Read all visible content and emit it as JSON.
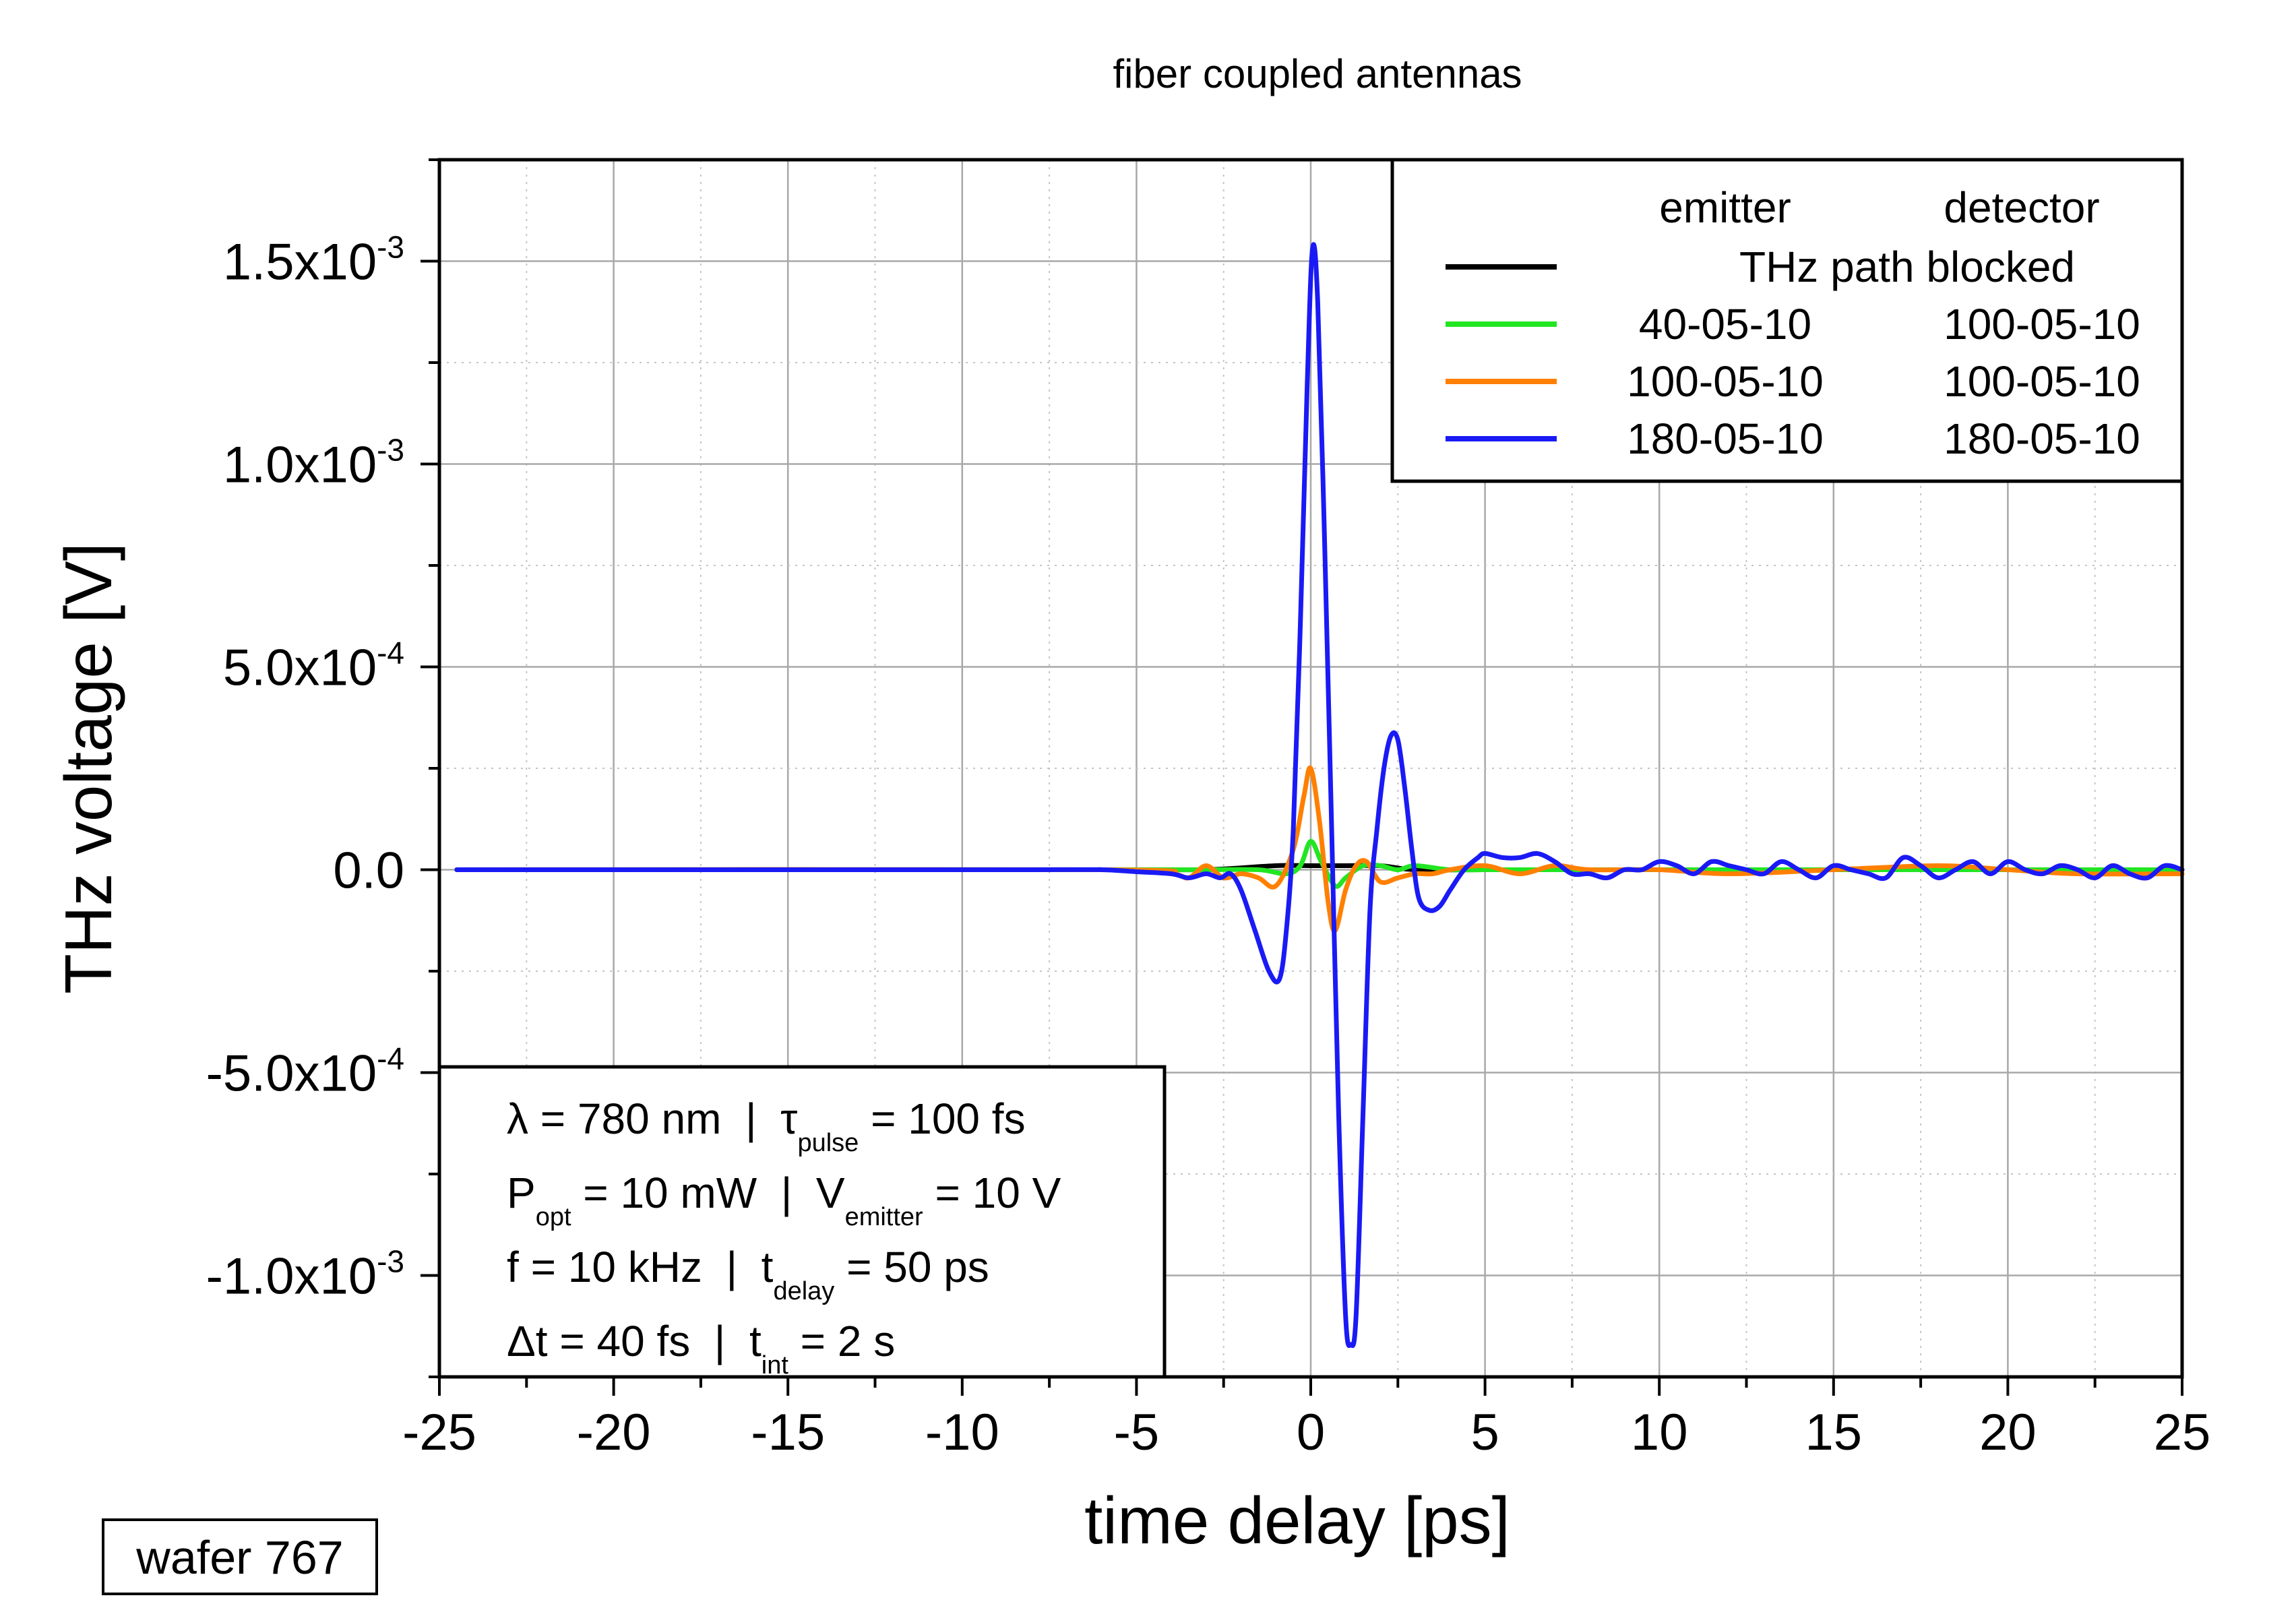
{
  "chart_data": {
    "type": "line",
    "title": "fiber coupled antennas",
    "xlabel": "time delay [ps]",
    "ylabel": "THz voltage [V]",
    "xlim": [
      -25,
      25
    ],
    "ylim": [
      -0.00125,
      0.00175
    ],
    "x_ticks": [
      -25,
      -20,
      -15,
      -10,
      -5,
      0,
      5,
      10,
      15,
      20,
      25
    ],
    "x_tick_labels": [
      "-25",
      "-20",
      "-15",
      "-10",
      "-5",
      "0",
      "5",
      "10",
      "15",
      "20",
      "25"
    ],
    "y_ticks": [
      {
        "value": 0.0015,
        "mantissa": "1.5x10",
        "exp": "-3"
      },
      {
        "value": 0.001,
        "mantissa": "1.0x10",
        "exp": "-3"
      },
      {
        "value": 0.0005,
        "mantissa": "5.0x10",
        "exp": "-4"
      },
      {
        "value": 0,
        "mantissa": "0.0",
        "exp": ""
      },
      {
        "value": -0.0005,
        "mantissa": "-5.0x10",
        "exp": "-4"
      },
      {
        "value": -0.001,
        "mantissa": "-1.0x10",
        "exp": "-3"
      }
    ],
    "grid": true,
    "legend": {
      "placement": "top-right",
      "header_emitter": "emitter",
      "header_detector": "detector",
      "entries": [
        {
          "color": "#000000",
          "label": "THz path blocked",
          "emitter": "",
          "detector": ""
        },
        {
          "color": "#22e622",
          "label": "",
          "emitter": "40-05-10",
          "detector": "100-05-10"
        },
        {
          "color": "#ff8000",
          "label": "",
          "emitter": "100-05-10",
          "detector": "100-05-10"
        },
        {
          "color": "#1a1af5",
          "label": "",
          "emitter": "180-05-10",
          "detector": "180-05-10"
        }
      ]
    },
    "series": [
      {
        "color": "#000000",
        "x": [
          -24.5,
          -5,
          -3,
          -1,
          0,
          1,
          2,
          3,
          5,
          10,
          15,
          20,
          25
        ],
        "y": [
          0,
          0,
          0,
          1e-05,
          1e-05,
          1e-05,
          1e-05,
          0,
          0,
          0,
          0,
          0,
          0
        ]
      },
      {
        "color": "#22e622",
        "x": [
          -24.5,
          -5,
          -3,
          -1.5,
          -0.7,
          -0.3,
          0,
          0.3,
          0.7,
          1.0,
          1.5,
          2.0,
          2.5,
          3.0,
          4,
          5,
          6,
          8,
          10,
          15,
          20,
          25
        ],
        "y": [
          0,
          0,
          0,
          0,
          -1e-05,
          1e-05,
          7e-05,
          2e-05,
          -4e-05,
          -2e-05,
          1e-05,
          1e-05,
          0,
          1e-05,
          0,
          0,
          0,
          0,
          0,
          0,
          0,
          0
        ]
      },
      {
        "color": "#ff8000",
        "x": [
          -24.5,
          -6,
          -4,
          -3.5,
          -3,
          -2.5,
          -2,
          -1.5,
          -1,
          -0.5,
          -0.2,
          0,
          0.25,
          0.5,
          0.7,
          1.0,
          1.3,
          1.6,
          2.0,
          2.5,
          3.0,
          3.5,
          4,
          5,
          6,
          7,
          8,
          10,
          12,
          15,
          18,
          20,
          22,
          25
        ],
        "y": [
          0,
          0,
          -1e-05,
          -2e-05,
          1e-05,
          -2e-05,
          -1e-05,
          -2e-05,
          -4e-05,
          5e-05,
          0.00018,
          0.00025,
          0.00012,
          -8e-05,
          -0.00015,
          -5e-05,
          1e-05,
          2e-05,
          -3e-05,
          -2e-05,
          -1e-05,
          -1e-05,
          0,
          1e-05,
          -1e-05,
          1e-05,
          0,
          0,
          -1e-05,
          0,
          1e-05,
          0,
          -1e-05,
          -1e-05
        ]
      },
      {
        "color": "#1a1af5",
        "x": [
          -24.5,
          -8,
          -6,
          -5,
          -4,
          -3.5,
          -3,
          -2.6,
          -2.3,
          -2.0,
          -1.6,
          -1.2,
          -0.9,
          -0.7,
          -0.5,
          -0.3,
          -0.1,
          0.05,
          0.2,
          0.4,
          0.6,
          0.8,
          1.0,
          1.15,
          1.3,
          1.5,
          1.7,
          1.9,
          2.1,
          2.3,
          2.5,
          2.7,
          2.9,
          3.1,
          3.4,
          3.7,
          4.0,
          4.4,
          4.8,
          5.0,
          5.5,
          6.0,
          6.5,
          7.0,
          7.5,
          8,
          8.5,
          9,
          9.5,
          10,
          10.5,
          11,
          11.5,
          12,
          12.5,
          13,
          13.5,
          14,
          14.5,
          15,
          15.5,
          16,
          16.5,
          17,
          17.5,
          18,
          18.5,
          19,
          19.5,
          20,
          20.5,
          21,
          21.5,
          22,
          22.5,
          23,
          23.5,
          24,
          24.5,
          25
        ],
        "y": [
          0,
          0,
          0,
          -5e-06,
          -1e-05,
          -2e-05,
          -1e-05,
          -2e-05,
          -1e-05,
          -5e-05,
          -0.00015,
          -0.00025,
          -0.00027,
          -0.00015,
          0.0001,
          0.0006,
          0.0012,
          0.00153,
          0.0014,
          0.0008,
          0.0001,
          -0.0006,
          -0.0011,
          -0.00117,
          -0.0011,
          -0.0006,
          -0.0001,
          0.0001,
          0.00025,
          0.00033,
          0.00032,
          0.0002,
          5e-05,
          -7e-05,
          -0.0001,
          -9e-05,
          -5e-05,
          0,
          3e-05,
          4e-05,
          3e-05,
          3e-05,
          4e-05,
          2e-05,
          -1e-05,
          -1e-05,
          -2e-05,
          0,
          0,
          2e-05,
          1e-05,
          -1e-05,
          2e-05,
          1e-05,
          0,
          -1e-05,
          2e-05,
          0,
          -2e-05,
          1e-05,
          0,
          -1e-05,
          -2e-05,
          3e-05,
          1e-05,
          -2e-05,
          0,
          2e-05,
          -1e-05,
          2e-05,
          0,
          -1e-05,
          1e-05,
          0,
          -2e-05,
          1e-05,
          -1e-05,
          -2e-05,
          1e-05,
          0
        ]
      }
    ],
    "info_box": {
      "placement": "bottom-left",
      "lines": [
        [
          {
            "t": "λ = 780 nm  |  τ"
          },
          {
            "s": "pulse"
          },
          {
            "t": " = 100 fs"
          }
        ],
        [
          {
            "t": "P"
          },
          {
            "s": "opt"
          },
          {
            "t": " = 10 mW  |  V"
          },
          {
            "s": "emitter"
          },
          {
            "t": " = 10 V"
          }
        ],
        [
          {
            "t": "f = 10 kHz  |  t"
          },
          {
            "s": "delay"
          },
          {
            "t": " = 50 ps"
          }
        ],
        [
          {
            "t": "Δt = 40 fs  |  t"
          },
          {
            "s": "int"
          },
          {
            "t": " = 2 s"
          }
        ]
      ]
    }
  },
  "wafer_label": "wafer 767"
}
